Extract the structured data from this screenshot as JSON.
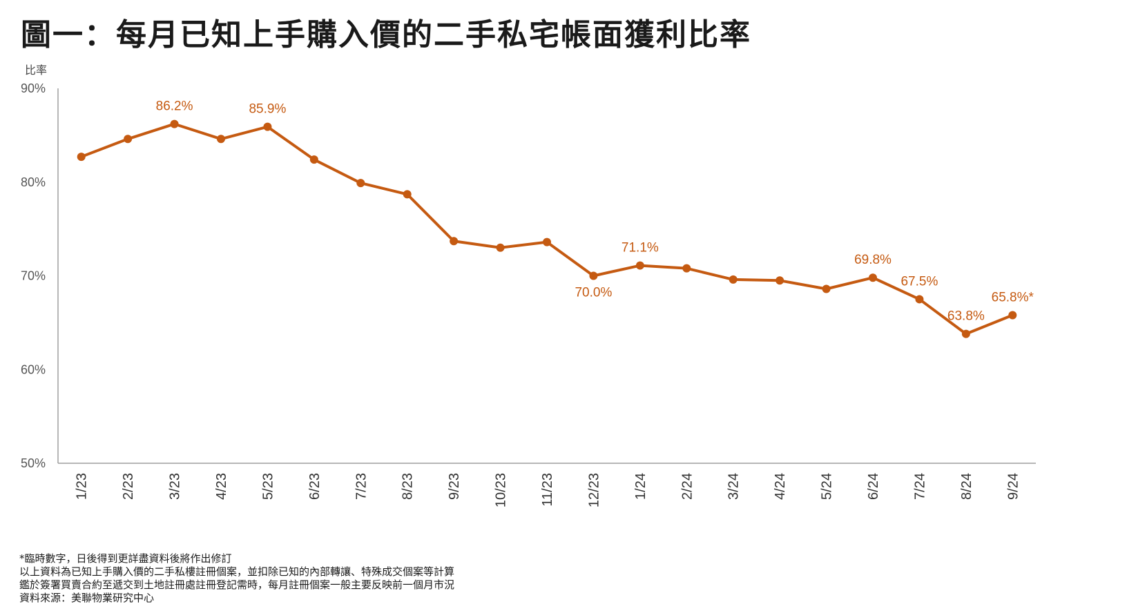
{
  "title": "圖一：每月已知上手購入價的二手私宅帳面獲利比率",
  "colors": {
    "series": "#c55a11",
    "axis": "#9e9e9e"
  },
  "chart_data": {
    "type": "line",
    "title": "圖一：每月已知上手購入價的二手私宅帳面獲利比率",
    "xlabel": "",
    "ylabel": "比率",
    "ylim": [
      50,
      90
    ],
    "yticks": [
      50,
      60,
      70,
      80,
      90
    ],
    "ytick_labels": [
      "50%",
      "60%",
      "70%",
      "80%",
      "90%"
    ],
    "grid": false,
    "categories": [
      "1/23",
      "2/23",
      "3/23",
      "4/23",
      "5/23",
      "6/23",
      "7/23",
      "8/23",
      "9/23",
      "10/23",
      "11/23",
      "12/23",
      "1/24",
      "2/24",
      "3/24",
      "4/24",
      "5/24",
      "6/24",
      "7/24",
      "8/24",
      "9/24"
    ],
    "series": [
      {
        "name": "帳面獲利比率",
        "values": [
          82.7,
          84.6,
          86.2,
          84.6,
          85.9,
          82.4,
          79.9,
          78.7,
          73.7,
          73.0,
          73.6,
          70.0,
          71.1,
          70.8,
          69.6,
          69.5,
          68.6,
          69.8,
          67.5,
          63.8,
          65.8
        ]
      }
    ],
    "data_labels": [
      {
        "index": 2,
        "text": "86.2%",
        "position": "above"
      },
      {
        "index": 4,
        "text": "85.9%",
        "position": "above"
      },
      {
        "index": 11,
        "text": "70.0%",
        "position": "below"
      },
      {
        "index": 12,
        "text": "71.1%",
        "position": "above"
      },
      {
        "index": 17,
        "text": "69.8%",
        "position": "above"
      },
      {
        "index": 18,
        "text": "67.5%",
        "position": "above"
      },
      {
        "index": 19,
        "text": "63.8%",
        "position": "above"
      },
      {
        "index": 20,
        "text": "65.8%*",
        "position": "above"
      }
    ]
  },
  "notes": [
    "*臨時數字，日後得到更詳盡資料後將作出修訂",
    "以上資料為已知上手購入價的二手私樓註冊個案，並扣除已知的內部轉讓、特殊成交個案等計算",
    "鑑於簽署買賣合約至遞交到土地註冊處註冊登記需時，每月註冊個案一般主要反映前一個月市況",
    "資料來源：美聯物業研究中心"
  ]
}
